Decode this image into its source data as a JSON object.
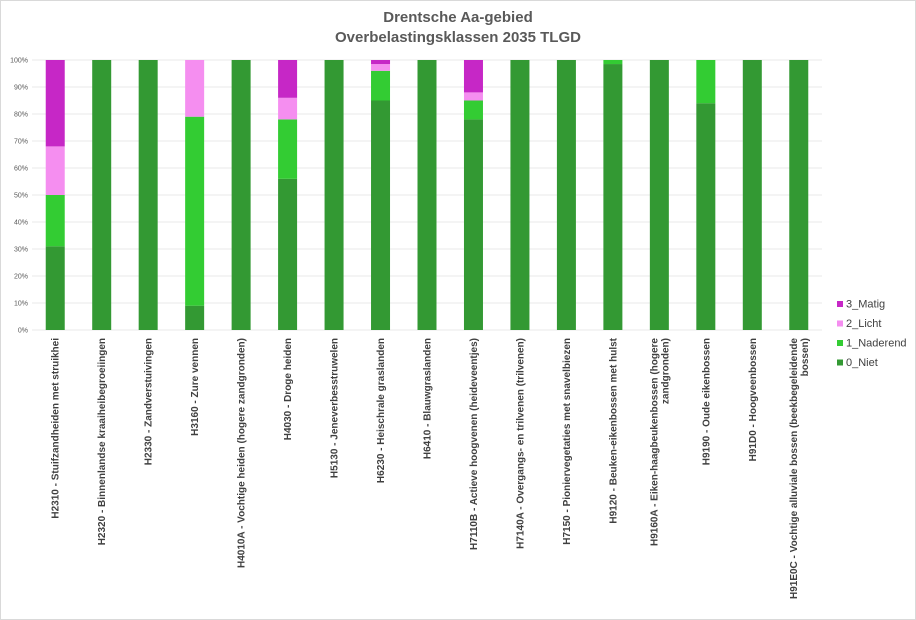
{
  "chart_data": {
    "type": "bar",
    "stacked": true,
    "title": "Drentsche Aa-gebied",
    "subtitle": "Overbelastingsklassen 2035 TLGD",
    "xlabel": "",
    "ylabel": "",
    "ylim": [
      0,
      100
    ],
    "y_ticks": [
      "0%",
      "10%",
      "20%",
      "30%",
      "40%",
      "50%",
      "60%",
      "70%",
      "80%",
      "90%",
      "100%"
    ],
    "grid": true,
    "legend_position": "right",
    "categories": [
      [
        "H2310 - Stuifzandheiden met struikhei"
      ],
      [
        "H2320 - Binnenlandse kraaiheibegroeiingen"
      ],
      [
        "H2330 - Zandverstuivingen"
      ],
      [
        "H3160 - Zure vennen"
      ],
      [
        "H4010A - Vochtige heiden (hogere zandgronden)"
      ],
      [
        "H4030 - Droge heiden"
      ],
      [
        "H5130 - Jeneverbesstruwelen"
      ],
      [
        "H6230 - Heischrale graslanden"
      ],
      [
        "H6410 - Blauwgraslanden"
      ],
      [
        "H7110B - Actieve hoogvenen (heideveentjes)"
      ],
      [
        "H7140A - Overgangs- en trilvenen (trilvenen)"
      ],
      [
        "H7150 - Pioniervegetaties met snavelbiezen"
      ],
      [
        "H9120 - Beuken-eikenbossen met hulst"
      ],
      [
        "H9160A - Eiken-haagbeukenbossen (hogere",
        "zandgronden)"
      ],
      [
        "H9190 - Oude eikenbossen"
      ],
      [
        "H91D0 - Hoogveenbossen"
      ],
      [
        "H91E0C - Vochtige alluviale bossen (beekbegeleidende",
        "bossen)"
      ]
    ],
    "series": [
      {
        "name": "0_Niet",
        "color": "#339933",
        "values": [
          31,
          100,
          100,
          9,
          100,
          56,
          100,
          85,
          100,
          78,
          100,
          100,
          98.5,
          100,
          84,
          100,
          100
        ]
      },
      {
        "name": "1_Naderend",
        "color": "#33cc33",
        "values": [
          19,
          0,
          0,
          70,
          0,
          22,
          0,
          11,
          0,
          7,
          0,
          0,
          1.5,
          0,
          16,
          0,
          0
        ]
      },
      {
        "name": "2_Licht",
        "color": "#f58ef0",
        "values": [
          18,
          0,
          0,
          21,
          0,
          8,
          0,
          2.5,
          0,
          3,
          0,
          0,
          0,
          0,
          0,
          0,
          0
        ]
      },
      {
        "name": "3_Matig",
        "color": "#c627c6",
        "values": [
          32,
          0,
          0,
          0,
          0,
          14,
          0,
          1.5,
          0,
          12,
          0,
          0,
          0,
          0,
          0,
          0,
          0
        ]
      }
    ]
  }
}
